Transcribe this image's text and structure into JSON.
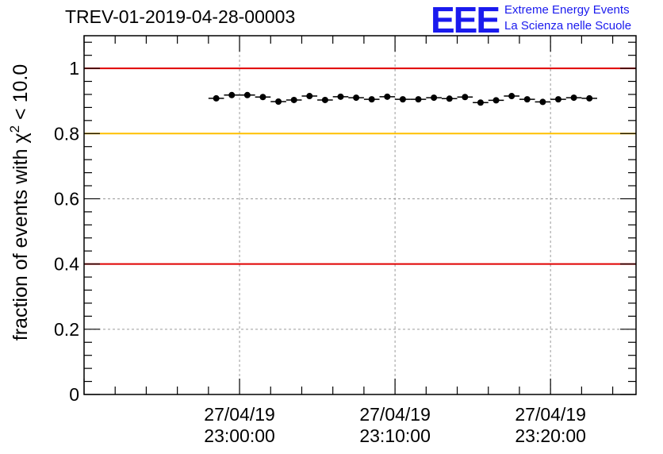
{
  "title": "TREV-01-2019-04-28-00003",
  "logo": {
    "mark": "EEE",
    "line1": "Extreme Energy Events",
    "line2": "La Scienza nelle Scuole"
  },
  "chart_data": {
    "type": "scatter",
    "title": "TREV-01-2019-04-28-00003",
    "xlabel": "",
    "ylabel": "fraction of events with χ² < 10.0",
    "ylabel_parts": {
      "prefix": "fraction of events with ",
      "chi": "χ",
      "sup": "2",
      "suffix": " < 10.0"
    },
    "ylim": [
      0,
      1.1
    ],
    "yticks": [
      {
        "value": 0,
        "label": "0"
      },
      {
        "value": 0.2,
        "label": "0.2"
      },
      {
        "value": 0.4,
        "label": "0.4"
      },
      {
        "value": 0.6,
        "label": "0.6"
      },
      {
        "value": 0.8,
        "label": "0.8"
      },
      {
        "value": 1,
        "label": "1"
      }
    ],
    "xlim_minutes": [
      -10,
      25.5
    ],
    "xticks": [
      {
        "minute": 0,
        "date": "27/04/19",
        "time": "23:00:00"
      },
      {
        "minute": 10,
        "date": "27/04/19",
        "time": "23:10:00"
      },
      {
        "minute": 20,
        "date": "27/04/19",
        "time": "23:20:00"
      }
    ],
    "grid": true,
    "reference_lines": [
      {
        "y": 1.0,
        "color": "#e00000"
      },
      {
        "y": 0.8,
        "color": "#ffc000"
      },
      {
        "y": 0.4,
        "color": "#e00000"
      }
    ],
    "bin_width_minutes": 1,
    "x_minutes": [
      -1.5,
      -0.5,
      0.5,
      1.5,
      2.5,
      3.5,
      4.5,
      5.5,
      6.5,
      7.5,
      8.5,
      9.5,
      10.5,
      11.5,
      12.5,
      13.5,
      14.5,
      15.5,
      16.5,
      17.5,
      18.5,
      19.5,
      20.5,
      21.5,
      22.5
    ],
    "values": [
      0.908,
      0.918,
      0.918,
      0.912,
      0.898,
      0.903,
      0.915,
      0.903,
      0.913,
      0.91,
      0.905,
      0.913,
      0.905,
      0.905,
      0.91,
      0.907,
      0.912,
      0.895,
      0.902,
      0.915,
      0.905,
      0.897,
      0.905,
      0.91,
      0.908
    ]
  }
}
